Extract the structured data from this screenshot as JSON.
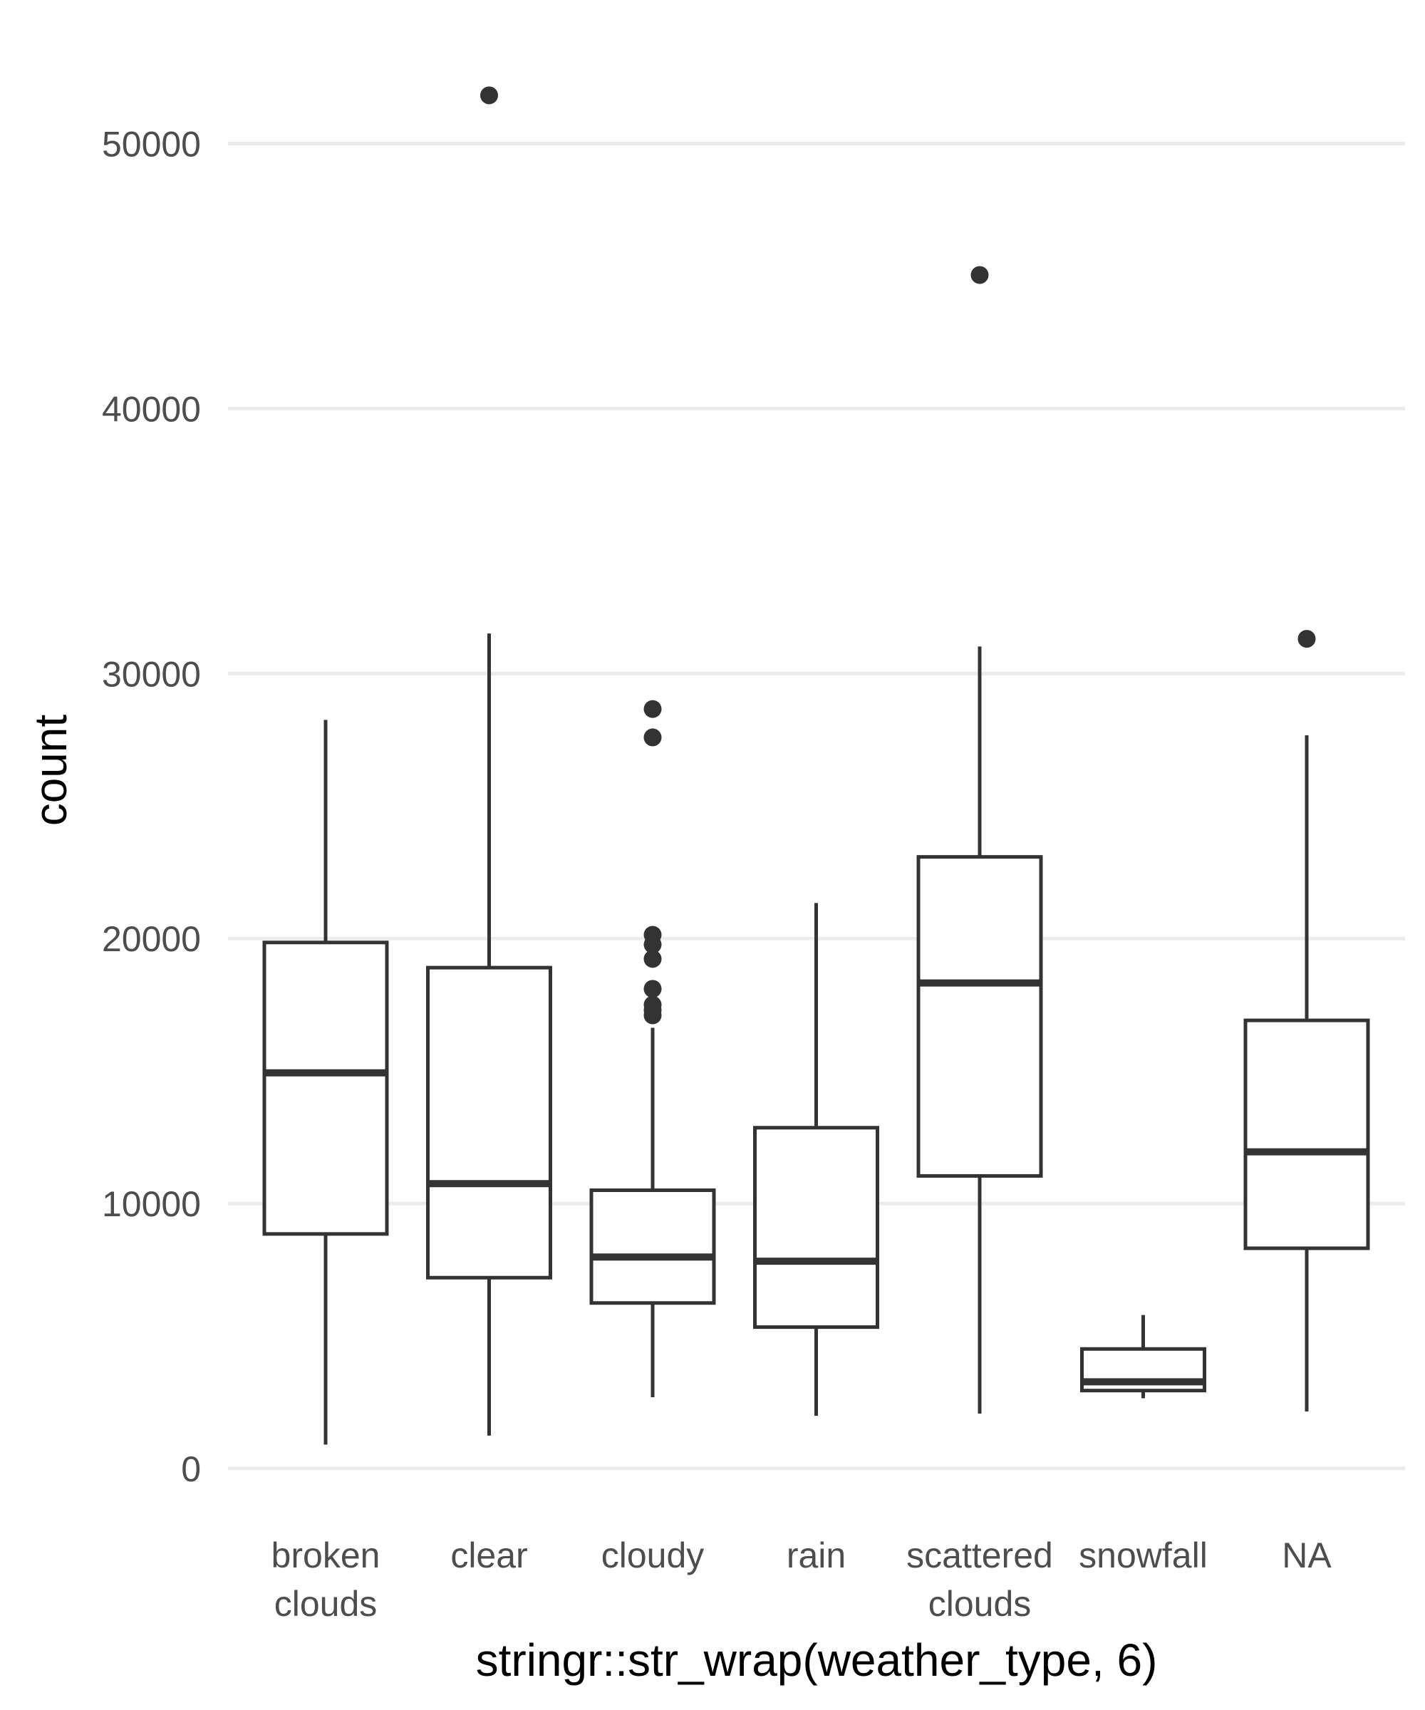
{
  "chart_data": {
    "type": "boxplot",
    "title": "",
    "xlabel": "stringr::str_wrap(weather_type, 6)",
    "ylabel": "count",
    "ylim": [
      0,
      50000
    ],
    "yticks": [
      0,
      10000,
      20000,
      30000,
      40000,
      50000
    ],
    "ytick_labels": [
      "0",
      "10000",
      "20000",
      "30000",
      "40000",
      "50000"
    ],
    "grid": true,
    "categories": [
      {
        "label": [
          "broken",
          "clouds"
        ],
        "min": 900,
        "q1": 8850,
        "median": 14930,
        "q3": 19850,
        "max": 28250,
        "outliers": []
      },
      {
        "label": [
          "clear"
        ],
        "min": 1240,
        "q1": 7200,
        "median": 10750,
        "q3": 18900,
        "max": 31510,
        "outliers": [
          51820
        ]
      },
      {
        "label": [
          "cloudy"
        ],
        "min": 2690,
        "q1": 6245,
        "median": 7980,
        "q3": 10500,
        "max": 16630,
        "outliers": [
          17100,
          17300,
          17500,
          18100,
          19230,
          19770,
          20140,
          27590,
          28660
        ]
      },
      {
        "label": [
          "rain"
        ],
        "min": 1985,
        "q1": 5335,
        "median": 7820,
        "q3": 12860,
        "max": 21340,
        "outliers": []
      },
      {
        "label": [
          "scattered",
          "clouds"
        ],
        "min": 2070,
        "q1": 11040,
        "median": 18320,
        "q3": 23080,
        "max": 31020,
        "outliers": [
          45040
        ]
      },
      {
        "label": [
          "snowfall"
        ],
        "min": 2650,
        "q1": 2940,
        "median": 3270,
        "q3": 4510,
        "max": 5790,
        "outliers": []
      },
      {
        "label": [
          "NA"
        ],
        "min": 2150,
        "q1": 8310,
        "median": 11950,
        "q3": 16910,
        "max": 27670,
        "outliers": [
          31310
        ]
      }
    ],
    "colors": {
      "box": "#333333",
      "grid": "#ebebeb",
      "tick_text": "#4d4d4d"
    }
  }
}
